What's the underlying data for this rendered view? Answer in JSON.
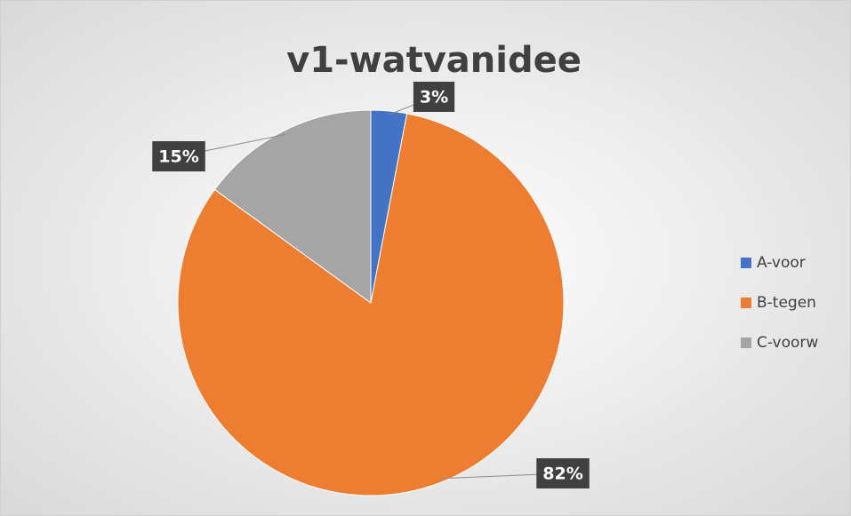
{
  "chart_data": {
    "type": "pie",
    "title": "v1-watvanidee",
    "categories": [
      "A-voor",
      "B-tegen",
      "C-voorw"
    ],
    "values": [
      3,
      82,
      15
    ],
    "value_labels": [
      "3%",
      "82%",
      "15%"
    ],
    "colors": [
      "#4472c4",
      "#ed7d31",
      "#a5a5a5"
    ],
    "legend": "right"
  }
}
